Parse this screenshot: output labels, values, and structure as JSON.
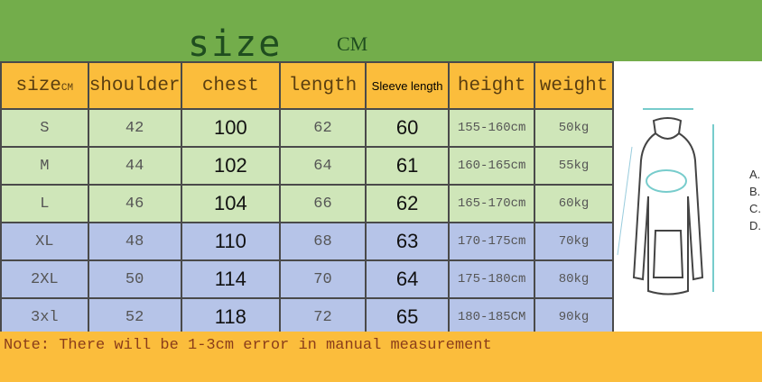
{
  "title": "size",
  "unit": "CM",
  "headers": [
    "size",
    "shoulder",
    "chest",
    "length",
    "Sleeve length",
    "height",
    "weight"
  ],
  "header_size_sub": "CM",
  "rows": [
    [
      "S",
      "42",
      "100",
      "62",
      "60",
      "155-160cm",
      "50kg"
    ],
    [
      "M",
      "44",
      "102",
      "64",
      "61",
      "160-165cm",
      "55kg"
    ],
    [
      "L",
      "46",
      "104",
      "66",
      "62",
      "165-170cm",
      "60kg"
    ],
    [
      "XL",
      "48",
      "110",
      "68",
      "63",
      "170-175cm",
      "70kg"
    ],
    [
      "2XL",
      "50",
      "114",
      "70",
      "64",
      "175-180cm",
      "80kg"
    ],
    [
      "3xl",
      "52",
      "118",
      "72",
      "65",
      "180-185CM",
      "90kg"
    ]
  ],
  "row_colors": [
    "green",
    "green",
    "green",
    "blue",
    "blue",
    "blue"
  ],
  "diagram_labels": [
    "A.",
    "B.",
    "C.",
    "D."
  ],
  "note": "Note: There will be 1-3cm error in manual measurement",
  "colors": {
    "top": "#73ad4b",
    "header": "#fbbd3c",
    "green_row": "#cfe6b9",
    "blue_row": "#b6c4e8"
  }
}
